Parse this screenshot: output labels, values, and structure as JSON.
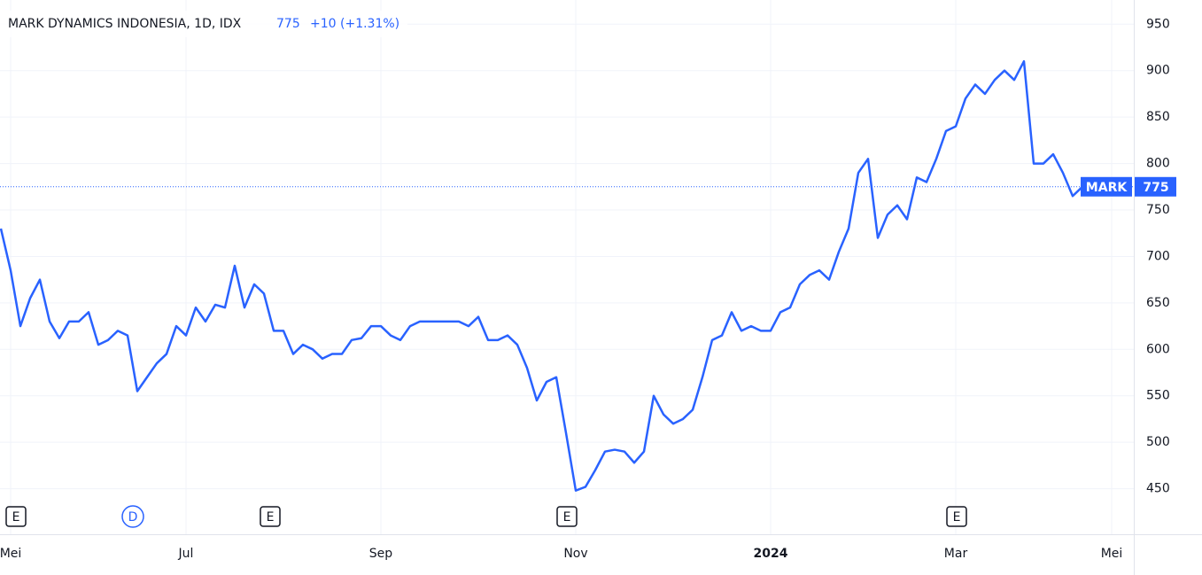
{
  "chart_data": {
    "type": "line",
    "title": "MARK DYNAMICS INDONESIA, 1D, IDX",
    "last_price": 775,
    "change": "+10 (+1.31%)",
    "categories": [
      null,
      "Mei",
      null,
      null,
      null,
      null,
      null,
      null,
      null,
      null,
      null,
      null,
      null,
      null,
      null,
      null,
      null,
      null,
      null,
      "Jul",
      null,
      null,
      null,
      null,
      null,
      null,
      null,
      null,
      null,
      null,
      null,
      null,
      null,
      null,
      null,
      null,
      null,
      null,
      null,
      "Sep",
      null,
      null,
      null,
      null,
      null,
      null,
      null,
      null,
      null,
      null,
      null,
      null,
      null,
      null,
      null,
      null,
      null,
      null,
      null,
      "Nov",
      null,
      null,
      null,
      null,
      null,
      null,
      null,
      null,
      null,
      null,
      null,
      null,
      null,
      null,
      null,
      null,
      null,
      null,
      null,
      "2024",
      null,
      null,
      null,
      null,
      null,
      null,
      null,
      null,
      null,
      null,
      null,
      null,
      null,
      null,
      null,
      null,
      null,
      null,
      "Mar",
      null,
      null,
      null,
      null,
      null,
      null,
      null,
      null,
      null,
      null,
      null,
      null,
      null,
      null,
      null,
      "Mei"
    ],
    "series": [
      {
        "name": "MARK",
        "color": "#2962ff",
        "values": [
          730,
          685,
          625,
          655,
          675,
          630,
          612,
          630,
          630,
          640,
          605,
          610,
          620,
          615,
          555,
          570,
          585,
          595,
          625,
          615,
          645,
          630,
          648,
          645,
          690,
          645,
          670,
          660,
          620,
          620,
          595,
          605,
          600,
          590,
          595,
          595,
          610,
          612,
          625,
          625,
          615,
          610,
          625,
          630,
          630,
          630,
          630,
          630,
          625,
          635,
          610,
          610,
          615,
          605,
          580,
          545,
          565,
          570,
          510,
          448,
          452,
          470,
          490,
          492,
          490,
          478,
          490,
          550,
          530,
          520,
          525,
          535,
          570,
          610,
          615,
          640,
          620,
          625,
          620,
          620,
          640,
          645,
          670,
          680,
          685,
          675,
          705,
          730,
          790,
          805,
          720,
          745,
          755,
          740,
          785,
          780,
          805,
          835,
          840,
          870,
          885,
          875,
          890,
          900,
          890,
          910,
          800,
          800,
          810,
          790,
          765,
          775,
          null,
          null,
          null
        ]
      }
    ],
    "ylim": [
      401,
      976
    ],
    "yticks": [
      450,
      500,
      550,
      600,
      650,
      700,
      750,
      800,
      850,
      900,
      950
    ],
    "grid": true,
    "events": [
      "E",
      "D",
      "E",
      "E",
      "E"
    ]
  }
}
